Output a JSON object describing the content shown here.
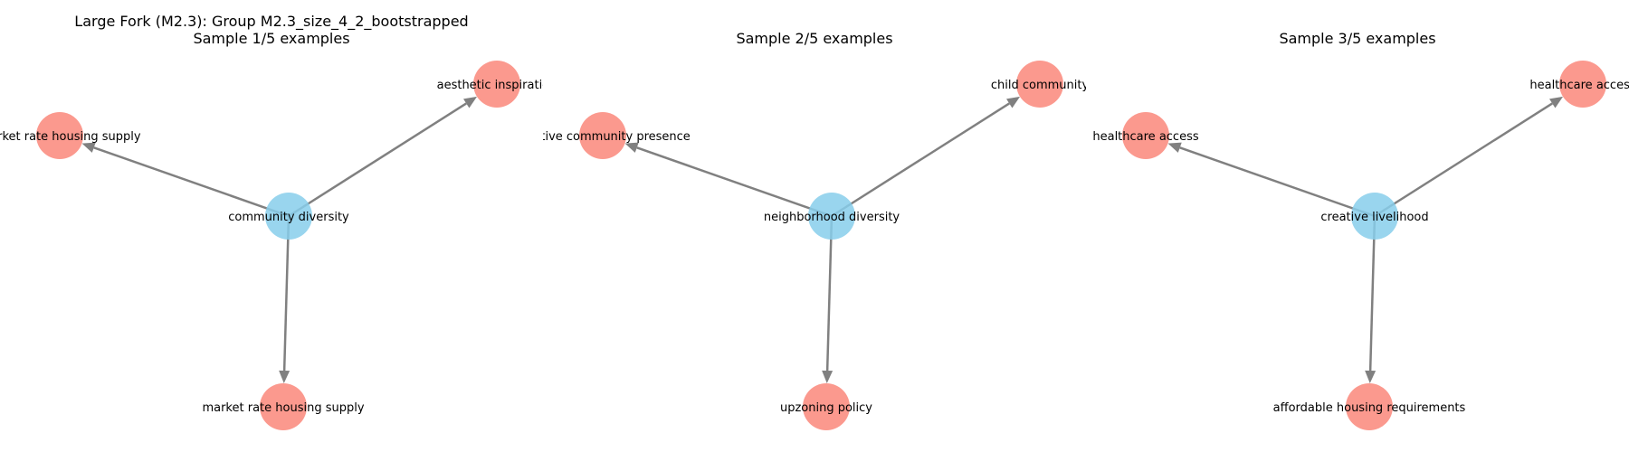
{
  "colors": {
    "source_node": "#87CEEB",
    "target_node": "#FA8072",
    "edge": "#808080"
  },
  "panels": [
    {
      "title_line1": "Large Fork (M2.3): Group M2.3_size_4_2_bootstrapped",
      "title_line2": "Sample 1/5 examples",
      "source": "community diversity",
      "targets": [
        "market rate housing supply",
        "aesthetic inspiration",
        "market rate housing supply"
      ]
    },
    {
      "title_line1": "",
      "title_line2": "Sample 2/5 examples",
      "source": "neighborhood diversity",
      "targets": [
        "creative community presence",
        "child community",
        "upzoning policy"
      ]
    },
    {
      "title_line1": "",
      "title_line2": "Sample 3/5 examples",
      "source": "creative livelihood",
      "targets": [
        "healthcare access",
        "healthcare access",
        "affordable housing requirements"
      ]
    }
  ]
}
